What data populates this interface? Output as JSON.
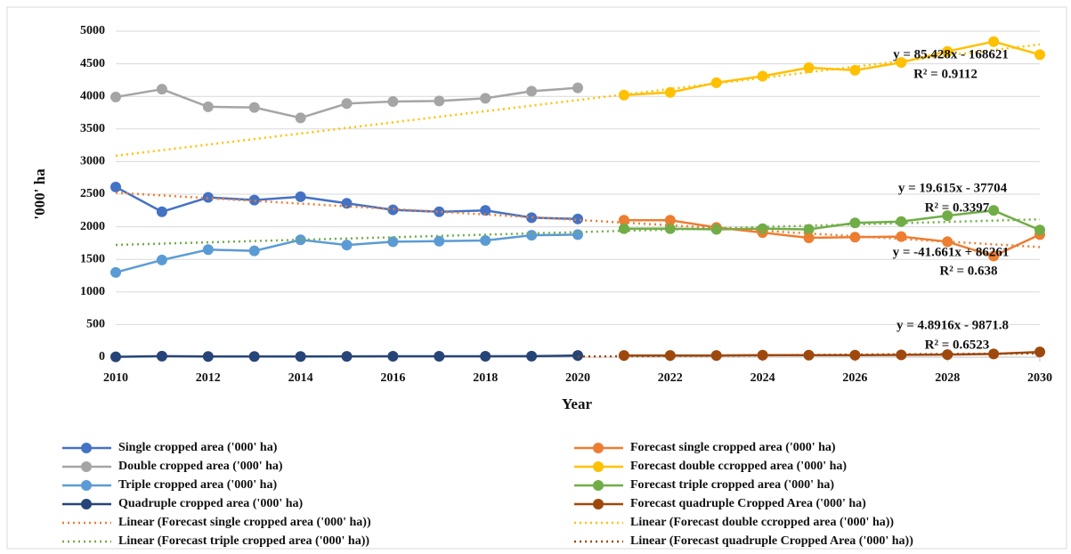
{
  "chart_data": {
    "type": "line",
    "x_label": "Year",
    "y_label": "'000' ha",
    "xlim": [
      2010,
      2030
    ],
    "xticks": [
      2010,
      2012,
      2014,
      2016,
      2018,
      2020,
      2022,
      2024,
      2026,
      2028,
      2030
    ],
    "ylim": [
      0,
      5000
    ],
    "yticks": [
      0,
      500,
      1000,
      1500,
      2000,
      2500,
      3000,
      3500,
      4000,
      4500,
      5000
    ],
    "grid": true,
    "legend": "bottom",
    "series": [
      {
        "name": "Single cropped area ('000' ha)",
        "color": "#4472c4",
        "style": "solid",
        "x": [
          2010,
          2011,
          2012,
          2013,
          2014,
          2015,
          2016,
          2017,
          2018,
          2019,
          2020
        ],
        "values": [
          2610,
          2230,
          2450,
          2410,
          2460,
          2360,
          2260,
          2230,
          2250,
          2140,
          2120
        ]
      },
      {
        "name": "Forecast single cropped area ('000' ha)",
        "color": "#ed7d31",
        "style": "solid",
        "x": [
          2021,
          2022,
          2023,
          2024,
          2025,
          2026,
          2027,
          2028,
          2029,
          2030
        ],
        "values": [
          2100,
          2100,
          1990,
          1910,
          1830,
          1840,
          1850,
          1770,
          1550,
          1880
        ]
      },
      {
        "name": "Double cropped area ('000' ha)",
        "color": "#a5a5a5",
        "style": "solid",
        "x": [
          2010,
          2011,
          2012,
          2013,
          2014,
          2015,
          2016,
          2017,
          2018,
          2019,
          2020
        ],
        "values": [
          3990,
          4110,
          3840,
          3830,
          3670,
          3890,
          3920,
          3930,
          3970,
          4080,
          4130
        ]
      },
      {
        "name": "Forecast double ccropped area ('000' ha)",
        "color": "#ffc000",
        "style": "solid",
        "x": [
          2021,
          2022,
          2023,
          2024,
          2025,
          2026,
          2027,
          2028,
          2029,
          2030
        ],
        "values": [
          4020,
          4060,
          4210,
          4310,
          4440,
          4400,
          4520,
          4690,
          4840,
          4640
        ]
      },
      {
        "name": "Triple cropped area ('000' ha)",
        "color": "#5b9bd5",
        "style": "solid",
        "x": [
          2010,
          2011,
          2012,
          2013,
          2014,
          2015,
          2016,
          2017,
          2018,
          2019,
          2020
        ],
        "values": [
          1300,
          1490,
          1650,
          1630,
          1800,
          1720,
          1770,
          1780,
          1790,
          1870,
          1880
        ]
      },
      {
        "name": "Forecast triple cropped area ('000' ha)",
        "color": "#70ad47",
        "style": "solid",
        "x": [
          2021,
          2022,
          2023,
          2024,
          2025,
          2026,
          2027,
          2028,
          2029,
          2030
        ],
        "values": [
          1970,
          1970,
          1960,
          1970,
          1960,
          2060,
          2080,
          2170,
          2250,
          1950
        ]
      },
      {
        "name": "Quadruple cropped area ('000' ha)",
        "color": "#264478",
        "style": "solid",
        "x": [
          2010,
          2011,
          2012,
          2013,
          2014,
          2015,
          2016,
          2017,
          2018,
          2019,
          2020
        ],
        "values": [
          5,
          15,
          10,
          10,
          10,
          12,
          14,
          14,
          14,
          15,
          25
        ]
      },
      {
        "name": "Forecast quadruple Cropped Area ('000' ha)",
        "color": "#9e480e",
        "style": "solid",
        "x": [
          2021,
          2022,
          2023,
          2024,
          2025,
          2026,
          2027,
          2028,
          2029,
          2030
        ],
        "values": [
          25,
          25,
          25,
          30,
          30,
          30,
          35,
          40,
          50,
          80
        ]
      },
      {
        "name": "Linear (Forecast single cropped area ('000' ha))",
        "color": "#ed7d31",
        "style": "dotted",
        "x": [
          2010,
          2030
        ],
        "values": [
          2522,
          1689
        ]
      },
      {
        "name": "Linear (Forecast double ccropped area ('000' ha))",
        "color": "#ffc000",
        "style": "dotted",
        "x": [
          2010,
          2030
        ],
        "values": [
          3089,
          4797
        ]
      },
      {
        "name": "Linear (Forecast triple cropped area ('000' ha))",
        "color": "#70ad47",
        "style": "dotted",
        "x": [
          2010,
          2030
        ],
        "values": [
          1722,
          2114
        ]
      },
      {
        "name": "Linear (Forecast quadruple Cropped Area ('000' ha))",
        "color": "#9e480e",
        "style": "dotted",
        "x": [
          2020,
          2030
        ],
        "values": [
          9,
          58
        ]
      }
    ],
    "annotations": [
      "y = 85.428x - 168621",
      "R² = 0.9112",
      "y = 19.615x - 37704",
      "R² = 0.3397",
      "y = -41.661x + 86261",
      "R² = 0.638",
      "y = 4.8916x - 9871.8",
      "R² = 0.6523"
    ]
  }
}
